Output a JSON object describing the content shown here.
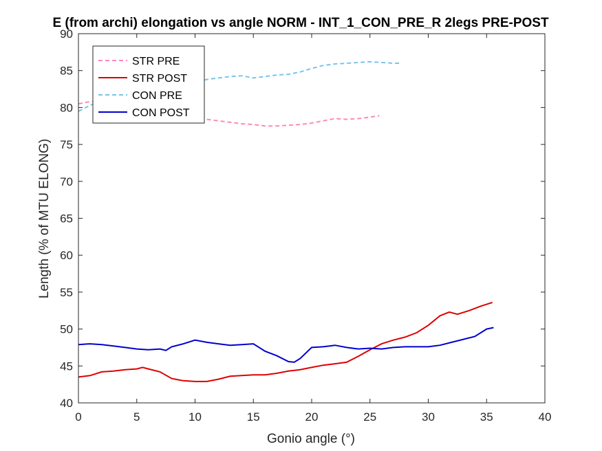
{
  "chart_data": {
    "type": "line",
    "title": "E (from archi) elongation vs angle NORM - INT_1_CON_PRE_R 2legs PRE-POST",
    "xlabel": "Gonio angle (°)",
    "ylabel": "Length (% of MTU ELONG)",
    "xlim": [
      0,
      40
    ],
    "ylim": [
      40,
      90
    ],
    "xticks": [
      0,
      5,
      10,
      15,
      20,
      25,
      30,
      35,
      40
    ],
    "yticks": [
      40,
      45,
      50,
      55,
      60,
      65,
      70,
      75,
      80,
      85,
      90
    ],
    "grid": false,
    "legend_position": "top-left",
    "series": [
      {
        "name": "STR PRE",
        "color": "#ff88bb",
        "style": "dashed",
        "x": [
          0,
          1,
          2,
          3,
          4,
          5,
          6,
          7,
          8,
          9,
          10,
          11,
          12,
          13,
          14,
          15,
          16,
          17,
          18,
          19,
          20,
          21,
          22,
          23,
          24,
          25,
          25.8
        ],
        "y": [
          80.5,
          80.8,
          81.0,
          80.8,
          80.5,
          80.0,
          79.6,
          79.2,
          79.0,
          78.8,
          78.6,
          78.4,
          78.2,
          78.0,
          77.8,
          77.7,
          77.5,
          77.5,
          77.6,
          77.7,
          77.9,
          78.2,
          78.5,
          78.4,
          78.5,
          78.7,
          78.9
        ]
      },
      {
        "name": "STR POST",
        "color": "#dd0000",
        "style": "solid",
        "x": [
          0,
          1,
          2,
          3,
          4,
          5,
          5.5,
          6,
          7,
          8,
          9,
          10,
          11,
          12,
          13,
          14,
          15,
          16,
          17,
          18,
          19,
          20,
          21,
          22,
          23,
          24,
          25,
          26,
          27,
          28,
          29,
          30,
          31,
          31.8,
          32.5,
          33.5,
          34.5,
          35.5
        ],
        "y": [
          43.5,
          43.7,
          44.2,
          44.3,
          44.5,
          44.6,
          44.8,
          44.6,
          44.2,
          43.3,
          43.0,
          42.9,
          42.9,
          43.2,
          43.6,
          43.7,
          43.8,
          43.8,
          44.0,
          44.3,
          44.5,
          44.8,
          45.1,
          45.3,
          45.5,
          46.3,
          47.2,
          48.0,
          48.5,
          48.9,
          49.5,
          50.5,
          51.8,
          52.3,
          52.0,
          52.5,
          53.1,
          53.6
        ]
      },
      {
        "name": "CON PRE",
        "color": "#77c4ee",
        "style": "dashed",
        "x": [
          0,
          1,
          2,
          3,
          4,
          5,
          6,
          7,
          8,
          9,
          10,
          11,
          12,
          13,
          14,
          15,
          16,
          17,
          18,
          19,
          20,
          21,
          22,
          23,
          24,
          25,
          26,
          27,
          27.5
        ],
        "y": [
          79.5,
          80.3,
          81.0,
          81.6,
          82.0,
          82.3,
          82.6,
          82.8,
          83.0,
          83.2,
          83.5,
          83.8,
          84.0,
          84.2,
          84.3,
          84.0,
          84.2,
          84.4,
          84.5,
          84.8,
          85.3,
          85.7,
          85.9,
          86.0,
          86.1,
          86.2,
          86.1,
          86.0,
          86.0
        ]
      },
      {
        "name": "CON POST",
        "color": "#0000cc",
        "style": "solid",
        "x": [
          0,
          1,
          2,
          3,
          4,
          5,
          6,
          7,
          7.5,
          8,
          9,
          10,
          11,
          12,
          13,
          14,
          15,
          16,
          17,
          18,
          18.5,
          19,
          20,
          21,
          22,
          23,
          24,
          25,
          26,
          27,
          28,
          29,
          30,
          31,
          32,
          33,
          34,
          35,
          35.6
        ],
        "y": [
          47.9,
          48.0,
          47.9,
          47.7,
          47.5,
          47.3,
          47.2,
          47.3,
          47.1,
          47.6,
          48.0,
          48.5,
          48.2,
          48.0,
          47.8,
          47.9,
          48.0,
          47.0,
          46.4,
          45.6,
          45.5,
          46.0,
          47.5,
          47.6,
          47.8,
          47.5,
          47.3,
          47.4,
          47.3,
          47.5,
          47.6,
          47.6,
          47.6,
          47.8,
          48.2,
          48.6,
          49.0,
          50.0,
          50.2
        ]
      }
    ]
  }
}
